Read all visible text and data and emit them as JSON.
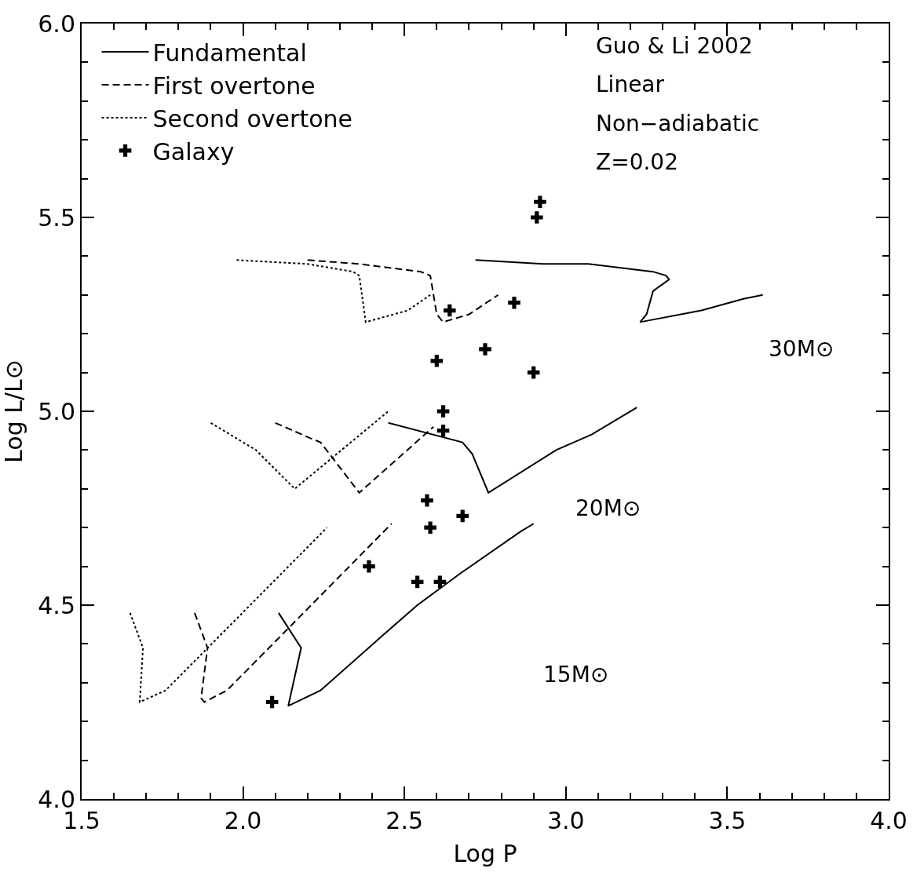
{
  "chart_data": {
    "type": "line",
    "xlabel": "Log P",
    "ylabel": "Log L/L⊙",
    "xlim": [
      1.5,
      4.0
    ],
    "ylim": [
      4.0,
      6.0
    ],
    "xticks": [
      1.5,
      {
        "value": 1.6,
        "label": null
      },
      {
        "value": 1.7,
        "label": null
      },
      {
        "value": 1.8,
        "label": null
      },
      {
        "value": 1.9,
        "label": null
      },
      {
        "value": 2.0,
        "label": "2.0"
      },
      {
        "value": 2.1,
        "label": null
      },
      {
        "value": 2.2,
        "label": null
      },
      {
        "value": 2.3,
        "label": null
      },
      {
        "value": 2.4,
        "label": null
      },
      2.5,
      {
        "value": 2.6,
        "label": null
      },
      {
        "value": 2.7,
        "label": null
      },
      {
        "value": 2.8,
        "label": null
      },
      {
        "value": 2.9,
        "label": null
      },
      {
        "value": 3.0,
        "label": "3.0"
      },
      {
        "value": 3.1,
        "label": null
      },
      {
        "value": 3.2,
        "label": null
      },
      {
        "value": 3.3,
        "label": null
      },
      {
        "value": 3.4,
        "label": null
      },
      3.5,
      {
        "value": 3.6,
        "label": null
      },
      {
        "value": 3.7,
        "label": null
      },
      {
        "value": 3.8,
        "label": null
      },
      {
        "value": 3.9,
        "label": null
      },
      {
        "value": 4.0,
        "label": "4.0"
      }
    ],
    "yticks": [
      {
        "value": 4.0,
        "label": "4.0"
      },
      {
        "value": 4.1,
        "label": null
      },
      {
        "value": 4.2,
        "label": null
      },
      {
        "value": 4.3,
        "label": null
      },
      {
        "value": 4.4,
        "label": null
      },
      4.5,
      {
        "value": 4.6,
        "label": null
      },
      {
        "value": 4.7,
        "label": null
      },
      {
        "value": 4.8,
        "label": null
      },
      {
        "value": 4.9,
        "label": null
      },
      {
        "value": 5.0,
        "label": "5.0"
      },
      {
        "value": 5.1,
        "label": null
      },
      {
        "value": 5.2,
        "label": null
      },
      {
        "value": 5.3,
        "label": null
      },
      {
        "value": 5.4,
        "label": null
      },
      5.5,
      {
        "value": 5.6,
        "label": null
      },
      {
        "value": 5.7,
        "label": null
      },
      {
        "value": 5.8,
        "label": null
      },
      {
        "value": 5.9,
        "label": null
      },
      {
        "value": 6.0,
        "label": "6.0"
      }
    ],
    "legend": "top left",
    "series": [
      {
        "name": "Fundamental",
        "line_style": "solid",
        "marker": "none",
        "color": "#000000",
        "x": [
          2.72,
          2.93,
          3.07,
          3.27,
          3.31,
          3.32,
          3.27,
          3.25,
          3.23,
          3.42,
          3.55,
          3.61,
          null,
          2.45,
          2.68,
          2.71,
          2.76,
          2.97,
          3.08,
          3.22,
          null,
          2.11,
          2.18,
          2.14,
          2.24,
          2.43,
          2.54,
          2.67,
          2.86,
          2.9
        ],
        "values": [
          5.39,
          5.38,
          5.38,
          5.36,
          5.35,
          5.34,
          5.31,
          5.25,
          5.23,
          5.26,
          5.29,
          5.3,
          null,
          4.97,
          4.92,
          4.89,
          4.79,
          4.9,
          4.94,
          5.01,
          null,
          4.48,
          4.39,
          4.24,
          4.28,
          4.42,
          4.5,
          4.58,
          4.69,
          4.71
        ]
      },
      {
        "name": "First overtone",
        "line_style": "dashed",
        "marker": "none",
        "color": "#000000",
        "x": [
          2.2,
          2.36,
          2.55,
          2.58,
          2.6,
          2.62,
          2.7,
          2.79,
          null,
          2.1,
          2.21,
          2.24,
          2.36,
          2.59,
          null,
          1.85,
          1.89,
          1.87,
          1.88,
          1.95,
          2.14,
          2.46
        ],
        "values": [
          5.39,
          5.38,
          5.36,
          5.35,
          5.25,
          5.23,
          5.25,
          5.3,
          null,
          4.97,
          4.93,
          4.92,
          4.79,
          4.96,
          null,
          4.48,
          4.39,
          4.26,
          4.25,
          4.28,
          4.44,
          4.71
        ]
      },
      {
        "name": "Second overtone",
        "line_style": "dotted",
        "marker": "none",
        "color": "#000000",
        "x": [
          1.98,
          2.2,
          2.34,
          2.36,
          2.38,
          2.51,
          2.58,
          null,
          1.9,
          2.04,
          2.16,
          2.45,
          null,
          1.65,
          1.69,
          1.68,
          1.76,
          2.26
        ],
        "values": [
          5.39,
          5.38,
          5.36,
          5.35,
          5.23,
          5.26,
          5.3,
          null,
          4.97,
          4.9,
          4.8,
          5.0,
          null,
          4.48,
          4.39,
          4.25,
          4.28,
          4.7
        ]
      },
      {
        "name": "Galaxy",
        "type": "scatter",
        "marker": "cross",
        "color": "#000000",
        "x": [
          2.92,
          2.91,
          2.64,
          2.84,
          2.6,
          2.75,
          2.9,
          2.62,
          2.62,
          2.57,
          2.58,
          2.68,
          2.39,
          2.54,
          2.61,
          2.09
        ],
        "values": [
          5.54,
          5.5,
          5.26,
          5.28,
          5.13,
          5.16,
          5.1,
          5.0,
          4.95,
          4.77,
          4.7,
          4.73,
          4.6,
          4.56,
          4.56,
          4.25
        ]
      }
    ],
    "annotations": [
      "Guo & Li 2002",
      "Linear",
      "Non−adiabatic",
      "Z=0.02",
      "30M⊙",
      "20M⊙",
      "15M⊙"
    ]
  }
}
